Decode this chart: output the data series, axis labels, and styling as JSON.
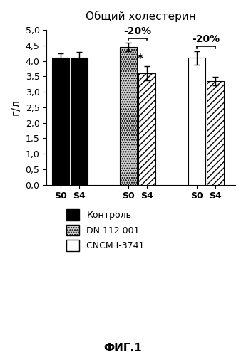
{
  "title": "Общий холестерин",
  "ylabel": "г/л",
  "fig_caption": "ФИГ.1",
  "ylim": [
    0.0,
    5.0
  ],
  "yticks": [
    0.0,
    0.5,
    1.0,
    1.5,
    2.0,
    2.5,
    3.0,
    3.5,
    4.0,
    4.5,
    5.0
  ],
  "ytick_labels": [
    "0,0",
    "0,5",
    "1,0",
    "1,5",
    "2,0",
    "2,5",
    "3,0",
    "3,5",
    "4,0",
    "4,5",
    "5,0"
  ],
  "groups": [
    {
      "label": "Контроль",
      "s0_val": 4.1,
      "s4_val": 4.1,
      "s0_err": 0.15,
      "s4_err": 0.18,
      "s0_facecolor": "#000000",
      "s0_hatch": "",
      "s4_facecolor": "#000000",
      "s4_hatch": "////"
    },
    {
      "label": "DN 112 001",
      "s0_val": 4.45,
      "s4_val": 3.6,
      "s0_err": 0.13,
      "s4_err": 0.22,
      "s0_facecolor": "#cccccc",
      "s0_hatch": ".....",
      "s4_facecolor": "#ffffff",
      "s4_hatch": "////"
    },
    {
      "label": "CNCM I-3741",
      "s0_val": 4.1,
      "s4_val": 3.35,
      "s0_err": 0.22,
      "s4_err": 0.13,
      "s0_facecolor": "#ffffff",
      "s0_hatch": "",
      "s4_facecolor": "#ffffff",
      "s4_hatch": "////"
    }
  ],
  "bar_width": 0.55,
  "group_centers": [
    1.2,
    3.4,
    5.6
  ],
  "bar_gap": 0.05,
  "bracket_drop": 0.06,
  "bracket_rise": 0.15,
  "bracket_text_rise": 0.07,
  "percent_text": "-20%",
  "star_text": "*",
  "legend_entries": [
    {
      "label": "Контроль",
      "facecolor": "#000000",
      "hatch": "",
      "edgecolor": "#000000"
    },
    {
      "label": "DN 112 001",
      "facecolor": "#cccccc",
      "hatch": ".....",
      "edgecolor": "#000000"
    },
    {
      "label": "CNCM I-3741",
      "facecolor": "#ffffff",
      "hatch": "",
      "edgecolor": "#000000"
    }
  ]
}
